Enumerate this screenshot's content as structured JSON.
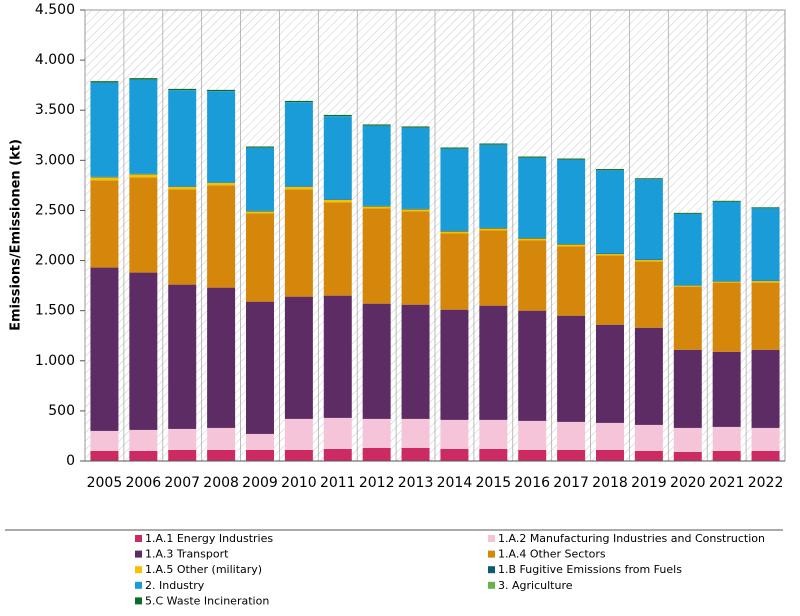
{
  "chart_data": {
    "type": "stacked_bar",
    "y_label": "Emissions/Emissionen (kt)",
    "categories": [
      "2005",
      "2006",
      "2007",
      "2008",
      "2009",
      "2010",
      "2011",
      "2012",
      "2013",
      "2014",
      "2015",
      "2016",
      "2017",
      "2018",
      "2019",
      "2020",
      "2021",
      "2022"
    ],
    "series": [
      {
        "name": "1.A.1 Energy Industries",
        "color": "#cc2a62",
        "values": [
          100,
          100,
          110,
          110,
          110,
          110,
          120,
          130,
          130,
          120,
          120,
          110,
          110,
          110,
          100,
          90,
          100,
          100
        ]
      },
      {
        "name": "1.A.2 Manufacturing Industries and Construction",
        "color": "#f6c4d8",
        "values": [
          200,
          210,
          210,
          220,
          160,
          310,
          310,
          290,
          290,
          290,
          290,
          290,
          280,
          270,
          260,
          240,
          240,
          230
        ]
      },
      {
        "name": "1.A.3 Transport",
        "color": "#5e2c64",
        "values": [
          1630,
          1570,
          1440,
          1400,
          1320,
          1220,
          1220,
          1150,
          1140,
          1100,
          1140,
          1100,
          1060,
          980,
          970,
          780,
          750,
          780
        ]
      },
      {
        "name": "1.A.4 Other Sectors",
        "color": "#d4870a",
        "values": [
          870,
          950,
          950,
          1020,
          880,
          1070,
          930,
          950,
          930,
          760,
          750,
          700,
          690,
          690,
          660,
          630,
          690,
          670
        ]
      },
      {
        "name": "1.A.5 Other (military)",
        "color": "#f3c200",
        "values": [
          30,
          30,
          25,
          25,
          20,
          25,
          25,
          20,
          20,
          20,
          20,
          20,
          20,
          15,
          15,
          10,
          10,
          15
        ]
      },
      {
        "name": "1.B Fugitive Emissions from Fuels",
        "color": "#0d5a72",
        "values": [
          5,
          5,
          5,
          5,
          5,
          5,
          5,
          5,
          5,
          5,
          5,
          5,
          5,
          5,
          5,
          5,
          5,
          5
        ]
      },
      {
        "name": "2. Industry",
        "color": "#1a9cd8",
        "values": [
          940,
          940,
          960,
          910,
          630,
          840,
          830,
          800,
          810,
          820,
          830,
          800,
          840,
          830,
          800,
          710,
          790,
          720
        ]
      },
      {
        "name": "3. Agriculture",
        "color": "#6cb24a",
        "values": [
          1,
          1,
          1,
          1,
          1,
          1,
          1,
          1,
          1,
          1,
          1,
          1,
          1,
          1,
          1,
          1,
          1,
          1
        ]
      },
      {
        "name": "5.C Waste Incineration",
        "color": "#0b6b2c",
        "values": [
          14,
          14,
          12,
          12,
          12,
          12,
          12,
          12,
          12,
          12,
          12,
          12,
          12,
          12,
          10,
          10,
          10,
          10
        ]
      }
    ],
    "ylim": [
      0,
      4500
    ],
    "yticks": [
      0,
      500,
      {
        "value": 1000,
        "label": "1.000"
      },
      {
        "value": 1500,
        "label": "1.500"
      },
      {
        "value": 2000,
        "label": "2.000"
      },
      {
        "value": 2500,
        "label": "2.500"
      },
      {
        "value": 3000,
        "label": "3.000"
      },
      {
        "value": 3500,
        "label": "3.500"
      },
      {
        "value": 4000,
        "label": "4.000"
      },
      {
        "value": 4500,
        "label": "4.500"
      }
    ],
    "legend": "bottom",
    "legend_columns": 2
  }
}
